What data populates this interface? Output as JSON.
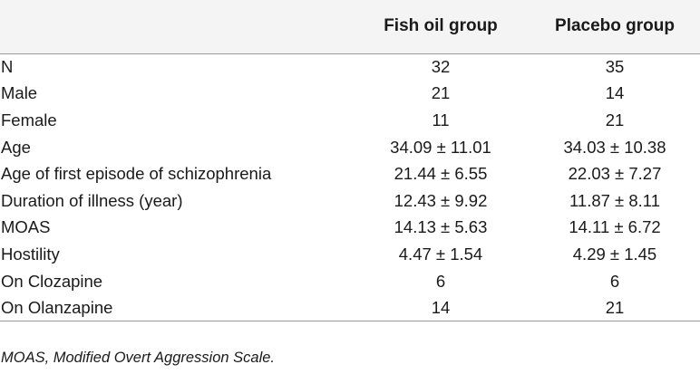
{
  "table": {
    "headers": [
      "",
      "Fish oil group",
      "Placebo group"
    ],
    "rows": [
      [
        "N",
        "32",
        "35"
      ],
      [
        "Male",
        "21",
        "14"
      ],
      [
        "Female",
        "11",
        "21"
      ],
      [
        "Age",
        "34.09 ± 11.01",
        "34.03 ± 10.38"
      ],
      [
        "Age of first episode of schizophrenia",
        "21.44 ± 6.55",
        "22.03 ± 7.27"
      ],
      [
        "Duration of illness (year)",
        "12.43 ± 9.92",
        "11.87 ± 8.11"
      ],
      [
        "MOAS",
        "14.13 ± 5.63",
        "14.11 ± 6.72"
      ],
      [
        "Hostility",
        "4.47 ± 1.54",
        "4.29 ± 1.45"
      ],
      [
        "On Clozapine",
        "6",
        "6"
      ],
      [
        "On Olanzapine",
        "14",
        "21"
      ]
    ]
  },
  "footnote": "MOAS, Modified Overt Aggression Scale."
}
